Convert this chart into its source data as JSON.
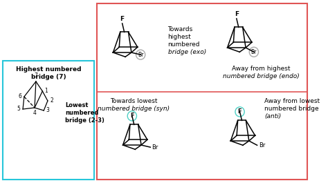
{
  "bg_color": "#ffffff",
  "left_box_color": "#26c6da",
  "right_box_color": "#e05555",
  "left_box_text1": "Highest numbered",
  "left_box_text2": "bridge (7)",
  "left_box_text3": "Lowest\nnumbered\nbridge (2-3)",
  "labels": {
    "top_left_line1": "Towards",
    "top_left_line2": "highest",
    "top_left_line3": "numbered",
    "top_left_line4": "bridge (exo)",
    "top_right_line1": "Away from highest",
    "top_right_line2": "numbered bridge (endo)",
    "bot_left_line1": "Towards lowest",
    "bot_left_line2": "numbered bridge (syn)",
    "bot_right_line1": "Away from lowest",
    "bot_right_line2": "numbered bridge",
    "bot_right_line3": "(anti)"
  },
  "F_circle_color": "#4dd0c4",
  "Br_circle_color": "#aaaaaa",
  "divider_color": "#e05555"
}
